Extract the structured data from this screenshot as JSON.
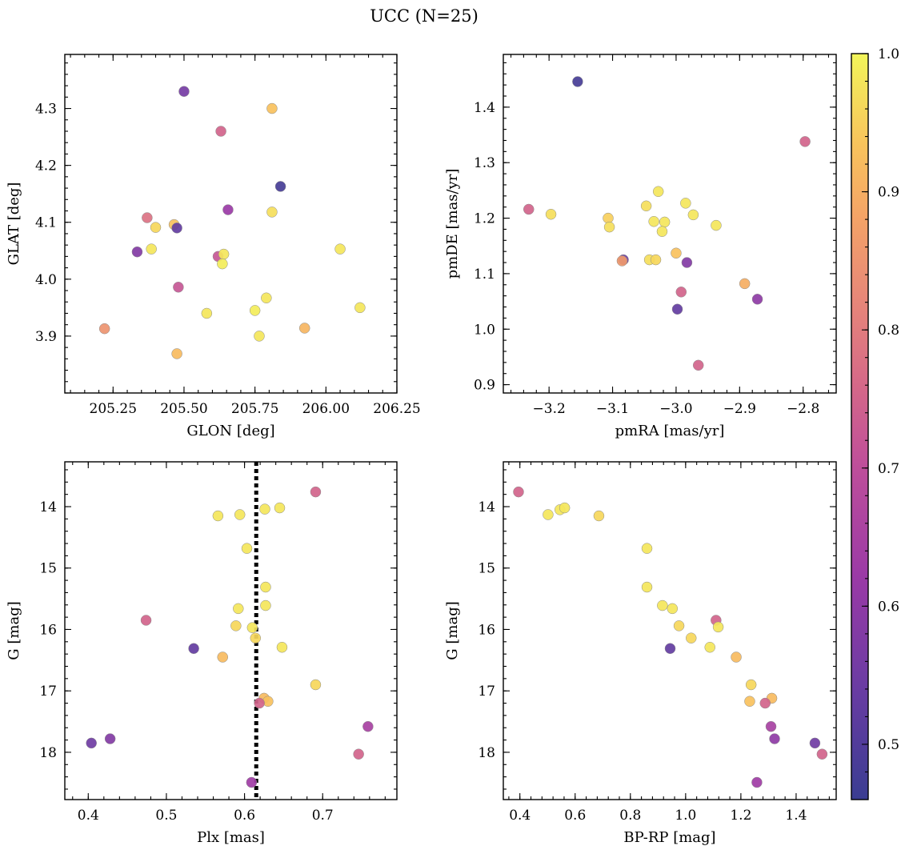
{
  "figure": {
    "title": "UCC (N=25)"
  },
  "colorbar": {
    "min": 0.46,
    "max": 1.0,
    "ticks": [
      0.5,
      0.6,
      0.7,
      0.8,
      0.9,
      1.0
    ],
    "tick_labels": [
      "0.5",
      "0.6",
      "0.7",
      "0.8",
      "0.9",
      "1.0"
    ],
    "colormap": "plasma"
  },
  "chart_data": [
    {
      "type": "scatter",
      "id": "glon-glat",
      "xlabel": "GLON [deg]",
      "ylabel": "GLAT [deg]",
      "xlim": [
        205.08,
        206.25
      ],
      "ylim": [
        3.8,
        4.395
      ],
      "xticks": [
        205.25,
        205.5,
        205.75,
        206.0,
        206.25
      ],
      "xtick_labels": [
        "205.25",
        "205.50",
        "205.75",
        "206.00",
        "206.25"
      ],
      "yticks": [
        3.9,
        4.0,
        4.1,
        4.2,
        4.3
      ],
      "ytick_labels": [
        "3.9",
        "4.0",
        "4.1",
        "4.2",
        "4.3"
      ],
      "points": [
        {
          "x": 205.5,
          "y": 4.33,
          "c": 0.56
        },
        {
          "x": 205.63,
          "y": 4.26,
          "c": 0.75
        },
        {
          "x": 205.81,
          "y": 4.3,
          "c": 0.93
        },
        {
          "x": 205.84,
          "y": 4.163,
          "c": 0.48
        },
        {
          "x": 205.655,
          "y": 4.122,
          "c": 0.62
        },
        {
          "x": 205.81,
          "y": 4.118,
          "c": 0.97
        },
        {
          "x": 205.37,
          "y": 4.108,
          "c": 0.78
        },
        {
          "x": 205.465,
          "y": 4.096,
          "c": 0.93
        },
        {
          "x": 205.4,
          "y": 4.091,
          "c": 0.96
        },
        {
          "x": 205.475,
          "y": 4.09,
          "c": 0.53
        },
        {
          "x": 205.385,
          "y": 4.053,
          "c": 0.98
        },
        {
          "x": 205.335,
          "y": 4.048,
          "c": 0.58
        },
        {
          "x": 206.05,
          "y": 4.053,
          "c": 0.98
        },
        {
          "x": 205.62,
          "y": 4.04,
          "c": 0.72
        },
        {
          "x": 205.64,
          "y": 4.044,
          "c": 0.98
        },
        {
          "x": 205.635,
          "y": 4.027,
          "c": 0.99
        },
        {
          "x": 205.48,
          "y": 3.986,
          "c": 0.72
        },
        {
          "x": 205.79,
          "y": 3.967,
          "c": 0.98
        },
        {
          "x": 205.75,
          "y": 3.945,
          "c": 0.99
        },
        {
          "x": 205.58,
          "y": 3.94,
          "c": 0.98
        },
        {
          "x": 206.12,
          "y": 3.95,
          "c": 0.98
        },
        {
          "x": 205.22,
          "y": 3.913,
          "c": 0.85
        },
        {
          "x": 205.925,
          "y": 3.914,
          "c": 0.91
        },
        {
          "x": 205.765,
          "y": 3.9,
          "c": 0.98
        },
        {
          "x": 205.475,
          "y": 3.869,
          "c": 0.92
        }
      ]
    },
    {
      "type": "scatter",
      "id": "pmra-pmde",
      "xlabel": "pmRA [mas/yr]",
      "ylabel": "pmDE [mas/yr]",
      "xlim": [
        -3.272,
        -2.748
      ],
      "ylim": [
        0.885,
        1.495
      ],
      "xticks": [
        -3.2,
        -3.1,
        -3.0,
        -2.9,
        -2.8
      ],
      "xtick_labels": [
        "−3.2",
        "−3.1",
        "−3.0",
        "−2.9",
        "−2.8"
      ],
      "yticks": [
        0.9,
        1.0,
        1.1,
        1.2,
        1.3,
        1.4
      ],
      "ytick_labels": [
        "0.9",
        "1.0",
        "1.1",
        "1.2",
        "1.3",
        "1.4"
      ],
      "points": [
        {
          "x": -3.155,
          "y": 1.446,
          "c": 0.48
        },
        {
          "x": -2.797,
          "y": 1.338,
          "c": 0.75
        },
        {
          "x": -3.232,
          "y": 1.216,
          "c": 0.75
        },
        {
          "x": -3.197,
          "y": 1.207,
          "c": 0.97
        },
        {
          "x": -3.107,
          "y": 1.2,
          "c": 0.95
        },
        {
          "x": -3.105,
          "y": 1.184,
          "c": 0.97
        },
        {
          "x": -3.028,
          "y": 1.248,
          "c": 0.98
        },
        {
          "x": -2.985,
          "y": 1.227,
          "c": 0.98
        },
        {
          "x": -3.047,
          "y": 1.222,
          "c": 0.97
        },
        {
          "x": -2.973,
          "y": 1.206,
          "c": 0.98
        },
        {
          "x": -3.035,
          "y": 1.194,
          "c": 0.98
        },
        {
          "x": -3.018,
          "y": 1.193,
          "c": 0.98
        },
        {
          "x": -2.937,
          "y": 1.187,
          "c": 0.98
        },
        {
          "x": -3.022,
          "y": 1.176,
          "c": 0.98
        },
        {
          "x": -3.0,
          "y": 1.137,
          "c": 0.93
        },
        {
          "x": -3.083,
          "y": 1.125,
          "c": 0.55
        },
        {
          "x": -3.085,
          "y": 1.123,
          "c": 0.86
        },
        {
          "x": -3.042,
          "y": 1.125,
          "c": 0.97
        },
        {
          "x": -3.032,
          "y": 1.125,
          "c": 0.96
        },
        {
          "x": -2.983,
          "y": 1.12,
          "c": 0.58
        },
        {
          "x": -2.892,
          "y": 1.082,
          "c": 0.9
        },
        {
          "x": -2.992,
          "y": 1.067,
          "c": 0.75
        },
        {
          "x": -2.872,
          "y": 1.054,
          "c": 0.6
        },
        {
          "x": -2.998,
          "y": 1.036,
          "c": 0.53
        },
        {
          "x": -2.965,
          "y": 0.935,
          "c": 0.75
        }
      ]
    },
    {
      "type": "scatter",
      "id": "plx-g",
      "xlabel": "Plx [mas]",
      "ylabel": "G [mag]",
      "xlim": [
        0.37,
        0.795
      ],
      "ylim": [
        18.77,
        13.27
      ],
      "xticks": [
        0.4,
        0.5,
        0.6,
        0.7
      ],
      "xtick_labels": [
        "0.4",
        "0.5",
        "0.6",
        "0.7"
      ],
      "yticks": [
        14,
        15,
        16,
        17,
        18
      ],
      "ytick_labels": [
        "14",
        "15",
        "16",
        "17",
        "18"
      ],
      "vline": 0.615,
      "points": [
        {
          "x": 0.691,
          "y": 13.76,
          "c": 0.75
        },
        {
          "x": 0.645,
          "y": 14.02,
          "c": 0.98
        },
        {
          "x": 0.626,
          "y": 14.04,
          "c": 0.98
        },
        {
          "x": 0.594,
          "y": 14.13,
          "c": 0.98
        },
        {
          "x": 0.566,
          "y": 14.15,
          "c": 0.98
        },
        {
          "x": 0.603,
          "y": 14.68,
          "c": 0.98
        },
        {
          "x": 0.627,
          "y": 15.31,
          "c": 0.98
        },
        {
          "x": 0.627,
          "y": 15.61,
          "c": 0.98
        },
        {
          "x": 0.592,
          "y": 15.66,
          "c": 0.98
        },
        {
          "x": 0.474,
          "y": 15.85,
          "c": 0.75
        },
        {
          "x": 0.589,
          "y": 15.94,
          "c": 0.96
        },
        {
          "x": 0.61,
          "y": 15.97,
          "c": 0.98
        },
        {
          "x": 0.614,
          "y": 16.14,
          "c": 0.96
        },
        {
          "x": 0.535,
          "y": 16.31,
          "c": 0.53
        },
        {
          "x": 0.648,
          "y": 16.29,
          "c": 0.98
        },
        {
          "x": 0.572,
          "y": 16.45,
          "c": 0.92
        },
        {
          "x": 0.691,
          "y": 16.9,
          "c": 0.96
        },
        {
          "x": 0.625,
          "y": 17.12,
          "c": 0.92
        },
        {
          "x": 0.63,
          "y": 17.17,
          "c": 0.93
        },
        {
          "x": 0.619,
          "y": 17.2,
          "c": 0.75
        },
        {
          "x": 0.758,
          "y": 17.58,
          "c": 0.65
        },
        {
          "x": 0.428,
          "y": 17.78,
          "c": 0.58
        },
        {
          "x": 0.404,
          "y": 17.85,
          "c": 0.55
        },
        {
          "x": 0.746,
          "y": 18.03,
          "c": 0.75
        },
        {
          "x": 0.609,
          "y": 18.49,
          "c": 0.63
        }
      ]
    },
    {
      "type": "scatter",
      "id": "bprp-g",
      "xlabel": "BP-RP [mag]",
      "ylabel": "G [mag]",
      "xlim": [
        0.34,
        1.545
      ],
      "ylim": [
        18.77,
        13.27
      ],
      "xticks": [
        0.4,
        0.6,
        0.8,
        1.0,
        1.2,
        1.4
      ],
      "xtick_labels": [
        "0.4",
        "0.6",
        "0.8",
        "1.0",
        "1.2",
        "1.4"
      ],
      "yticks": [
        14,
        15,
        16,
        17,
        18
      ],
      "ytick_labels": [
        "14",
        "15",
        "16",
        "17",
        "18"
      ],
      "points": [
        {
          "x": 0.395,
          "y": 13.76,
          "c": 0.75
        },
        {
          "x": 0.545,
          "y": 14.05,
          "c": 0.98
        },
        {
          "x": 0.562,
          "y": 14.02,
          "c": 0.98
        },
        {
          "x": 0.502,
          "y": 14.13,
          "c": 0.98
        },
        {
          "x": 0.686,
          "y": 14.15,
          "c": 0.96
        },
        {
          "x": 0.86,
          "y": 14.68,
          "c": 0.98
        },
        {
          "x": 0.86,
          "y": 15.31,
          "c": 0.98
        },
        {
          "x": 0.916,
          "y": 15.61,
          "c": 0.98
        },
        {
          "x": 0.952,
          "y": 15.66,
          "c": 0.98
        },
        {
          "x": 1.11,
          "y": 15.85,
          "c": 0.75
        },
        {
          "x": 0.976,
          "y": 15.94,
          "c": 0.96
        },
        {
          "x": 1.118,
          "y": 15.96,
          "c": 0.98
        },
        {
          "x": 1.02,
          "y": 16.14,
          "c": 0.96
        },
        {
          "x": 0.944,
          "y": 16.31,
          "c": 0.53
        },
        {
          "x": 1.088,
          "y": 16.29,
          "c": 0.98
        },
        {
          "x": 1.183,
          "y": 16.45,
          "c": 0.92
        },
        {
          "x": 1.237,
          "y": 16.9,
          "c": 0.96
        },
        {
          "x": 1.312,
          "y": 17.12,
          "c": 0.92
        },
        {
          "x": 1.232,
          "y": 17.17,
          "c": 0.93
        },
        {
          "x": 1.288,
          "y": 17.2,
          "c": 0.75
        },
        {
          "x": 1.309,
          "y": 17.58,
          "c": 0.65
        },
        {
          "x": 1.322,
          "y": 17.78,
          "c": 0.6
        },
        {
          "x": 1.468,
          "y": 17.85,
          "c": 0.55
        },
        {
          "x": 1.494,
          "y": 18.03,
          "c": 0.75
        },
        {
          "x": 1.258,
          "y": 18.49,
          "c": 0.63
        }
      ]
    }
  ]
}
